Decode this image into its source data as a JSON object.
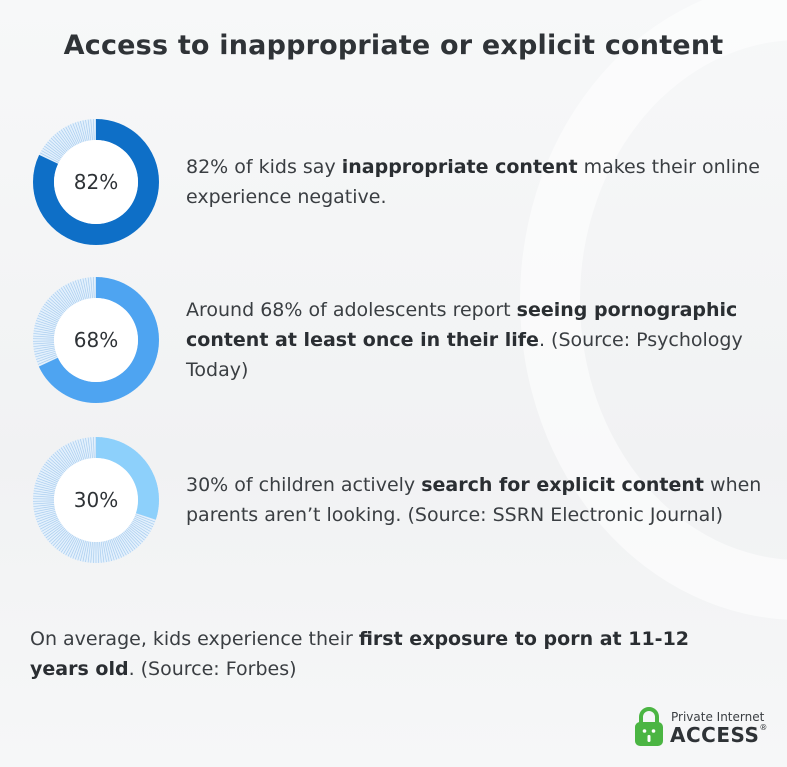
{
  "title": "Access to inappropriate or explicit content",
  "stats": [
    {
      "label": "82%",
      "parts": [
        {
          "text": "82% of kids say ",
          "bold": false
        },
        {
          "text": "inappropriate content",
          "bold": true
        },
        {
          "text": " makes their online experience negative.",
          "bold": false
        }
      ]
    },
    {
      "label": "68%",
      "parts": [
        {
          "text": "Around 68% of adolescents report ",
          "bold": false
        },
        {
          "text": "seeing pornographic content at least once in their life",
          "bold": true
        },
        {
          "text": ". (Source: Psychology Today)",
          "bold": false
        }
      ]
    },
    {
      "label": "30%",
      "parts": [
        {
          "text": "30% of children actively ",
          "bold": false
        },
        {
          "text": "search for explicit content",
          "bold": true
        },
        {
          "text": " when parents aren’t looking. (Source: SSRN Electronic Journal)",
          "bold": false
        }
      ]
    }
  ],
  "footer": {
    "parts": [
      {
        "text": "On average, kids experience their ",
        "bold": false
      },
      {
        "text": "first exposure to porn at 11-12 years old",
        "bold": true
      },
      {
        "text": ". (Source: Forbes)",
        "bold": false
      }
    ]
  },
  "logo": {
    "small_text": "Private Internet",
    "big_text": "ACCESS",
    "registered": "®",
    "lock_color": "#4bb543",
    "icon": "padlock-icon"
  },
  "chart_data": [
    {
      "type": "pie",
      "subtype": "donut",
      "values": [
        82,
        18
      ],
      "label": "82%",
      "fill_color": "#0e6fc7",
      "remainder_style": "hatched-light-blue"
    },
    {
      "type": "pie",
      "subtype": "donut",
      "values": [
        68,
        32
      ],
      "label": "68%",
      "fill_color": "#4ea4f1",
      "remainder_style": "hatched-light-blue"
    },
    {
      "type": "pie",
      "subtype": "donut",
      "values": [
        30,
        70
      ],
      "label": "30%",
      "fill_color": "#8dd0fb",
      "remainder_style": "hatched-light-blue"
    }
  ]
}
